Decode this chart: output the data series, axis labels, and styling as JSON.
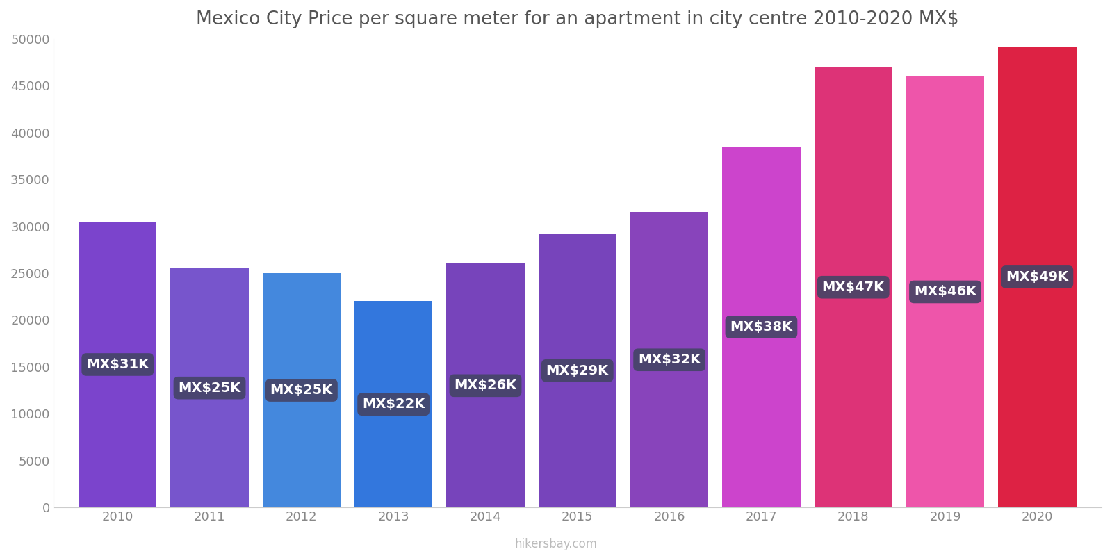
{
  "title": "Mexico City Price per square meter for an apartment in city centre 2010-2020 MX$",
  "years": [
    2010,
    2011,
    2012,
    2013,
    2014,
    2015,
    2016,
    2017,
    2018,
    2019,
    2020
  ],
  "values": [
    30500,
    25500,
    25000,
    22000,
    26000,
    29200,
    31500,
    38500,
    47000,
    46000,
    49200
  ],
  "labels": [
    "MX$31K",
    "MX$25K",
    "MX$25K",
    "MX$22K",
    "MX$26K",
    "MX$29K",
    "MX$32K",
    "MX$38K",
    "MX$47K",
    "MX$46K",
    "MX$49K"
  ],
  "bar_colors": [
    "#7b44cc",
    "#7755cc",
    "#4488dd",
    "#3377dd",
    "#7744bb",
    "#7744bb",
    "#8844bb",
    "#cc44cc",
    "#dd3377",
    "#ee55aa",
    "#dd2244"
  ],
  "ylim": [
    0,
    50000
  ],
  "yticks": [
    0,
    5000,
    10000,
    15000,
    20000,
    25000,
    30000,
    35000,
    40000,
    45000,
    50000
  ],
  "label_bg_color": "#444466",
  "label_text_color": "#ffffff",
  "title_color": "#555555",
  "watermark": "hikersbay.com",
  "background_color": "#ffffff",
  "bar_width": 0.85,
  "label_fontsize": 14
}
